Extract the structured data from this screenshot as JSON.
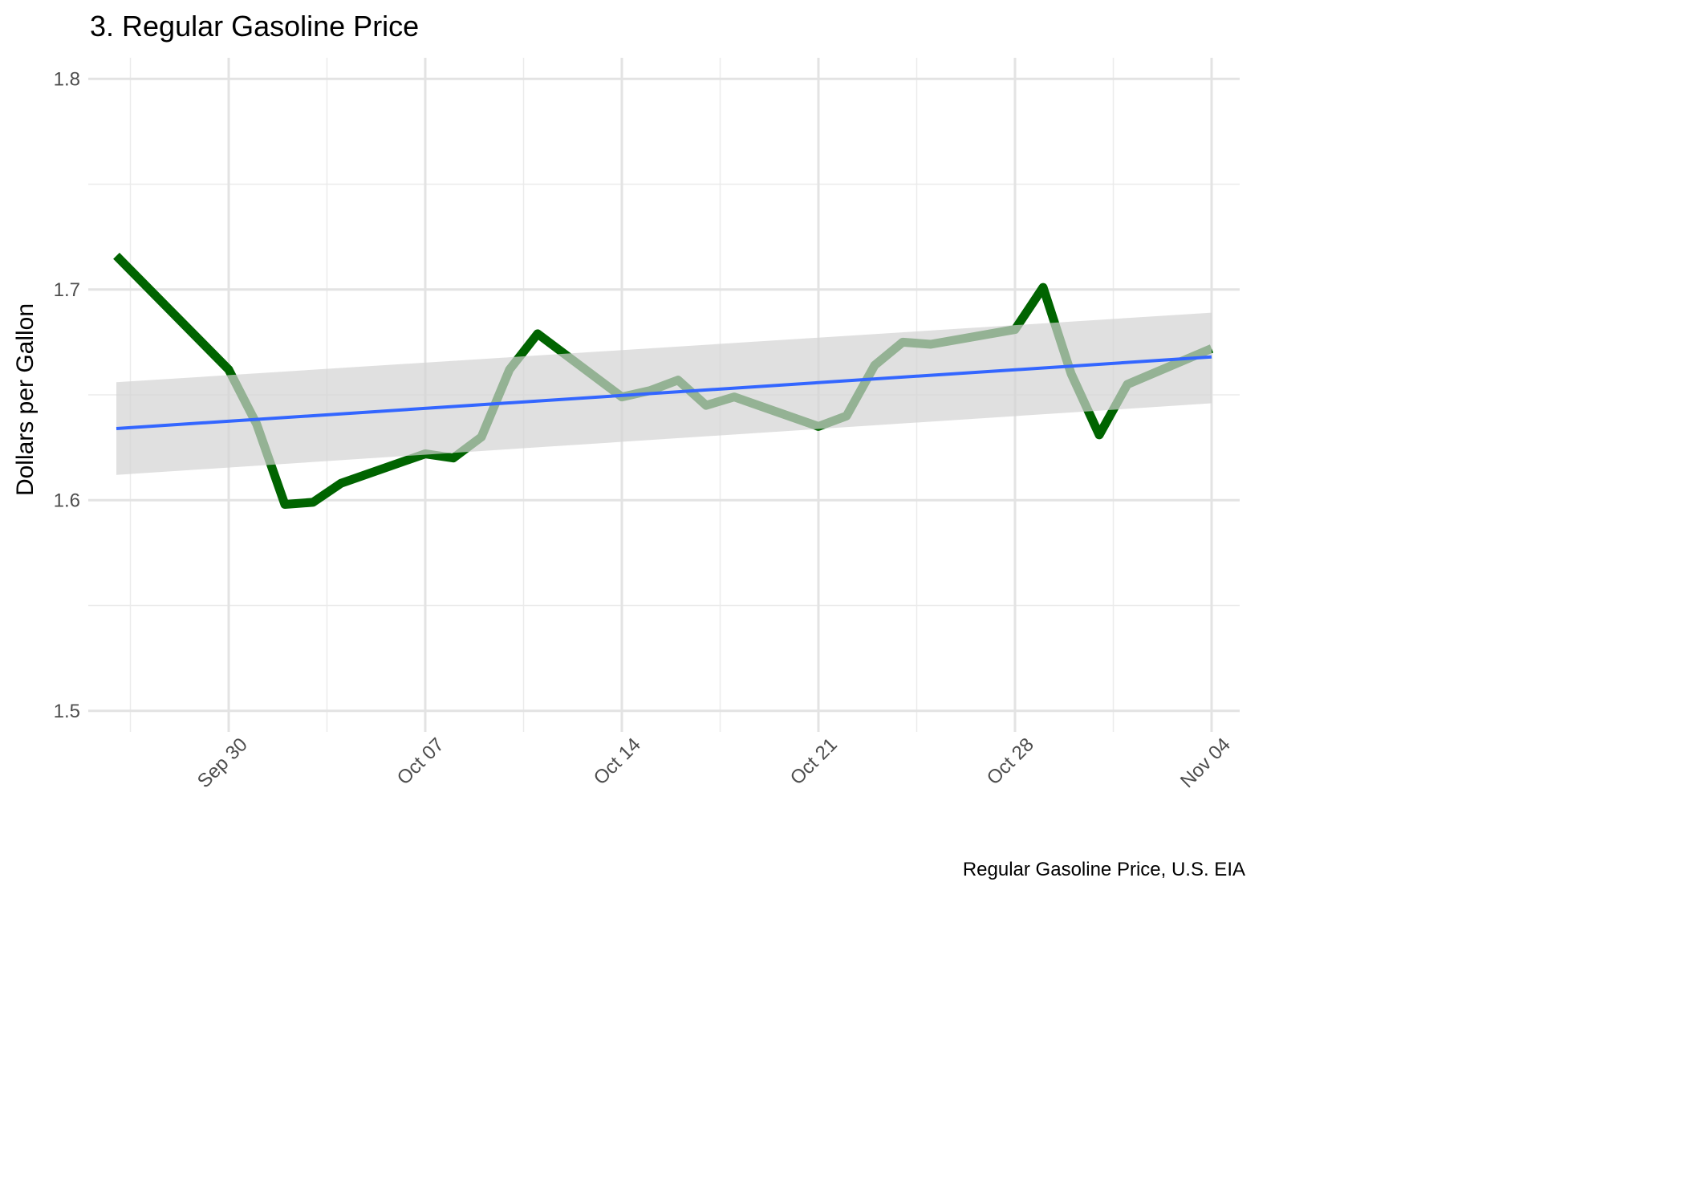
{
  "chart_data": {
    "type": "line",
    "title": "3. Regular Gasoline Price",
    "xlabel": "",
    "ylabel": "Dollars per Gallon",
    "caption": "Regular Gasoline Price, U.S. EIA",
    "x_ticks": [
      "Sep 30",
      "Oct 07",
      "Oct 14",
      "Oct 21",
      "Oct 28",
      "Nov 04"
    ],
    "x_tick_dates": [
      "2019-09-30",
      "2019-10-07",
      "2019-10-14",
      "2019-10-21",
      "2019-10-28",
      "2019-11-04"
    ],
    "xlim": [
      "2019-09-25",
      "2019-11-05"
    ],
    "y_ticks": [
      "1.5",
      "1.6",
      "1.7",
      "1.8"
    ],
    "ylim": [
      1.49,
      1.81
    ],
    "grid": true,
    "legend": "none",
    "series": [
      {
        "color": "#006400",
        "points": [
          {
            "x": "2019-09-26",
            "y": 1.716
          },
          {
            "x": "2019-09-30",
            "y": 1.662
          },
          {
            "x": "2019-10-01",
            "y": 1.636
          },
          {
            "x": "2019-10-02",
            "y": 1.598
          },
          {
            "x": "2019-10-03",
            "y": 1.599
          },
          {
            "x": "2019-10-04",
            "y": 1.608
          },
          {
            "x": "2019-10-07",
            "y": 1.622
          },
          {
            "x": "2019-10-08",
            "y": 1.62
          },
          {
            "x": "2019-10-09",
            "y": 1.63
          },
          {
            "x": "2019-10-10",
            "y": 1.662
          },
          {
            "x": "2019-10-11",
            "y": 1.679
          },
          {
            "x": "2019-10-14",
            "y": 1.649
          },
          {
            "x": "2019-10-15",
            "y": 1.652
          },
          {
            "x": "2019-10-16",
            "y": 1.657
          },
          {
            "x": "2019-10-17",
            "y": 1.645
          },
          {
            "x": "2019-10-18",
            "y": 1.649
          },
          {
            "x": "2019-10-21",
            "y": 1.635
          },
          {
            "x": "2019-10-22",
            "y": 1.64
          },
          {
            "x": "2019-10-23",
            "y": 1.664
          },
          {
            "x": "2019-10-24",
            "y": 1.675
          },
          {
            "x": "2019-10-25",
            "y": 1.674
          },
          {
            "x": "2019-10-28",
            "y": 1.681
          },
          {
            "x": "2019-10-29",
            "y": 1.701
          },
          {
            "x": "2019-10-30",
            "y": 1.66
          },
          {
            "x": "2019-10-31",
            "y": 1.631
          },
          {
            "x": "2019-11-01",
            "y": 1.655
          },
          {
            "x": "2019-11-04",
            "y": 1.672
          }
        ]
      }
    ],
    "trend": {
      "method": "linear",
      "color": "#3366FF",
      "ribbon_color": "#d3d3d3",
      "start": {
        "x": "2019-09-26",
        "y": 1.634,
        "ymin": 1.612,
        "ymax": 1.656
      },
      "end": {
        "x": "2019-11-04",
        "y": 1.668,
        "ymin": 1.646,
        "ymax": 1.689
      }
    }
  }
}
